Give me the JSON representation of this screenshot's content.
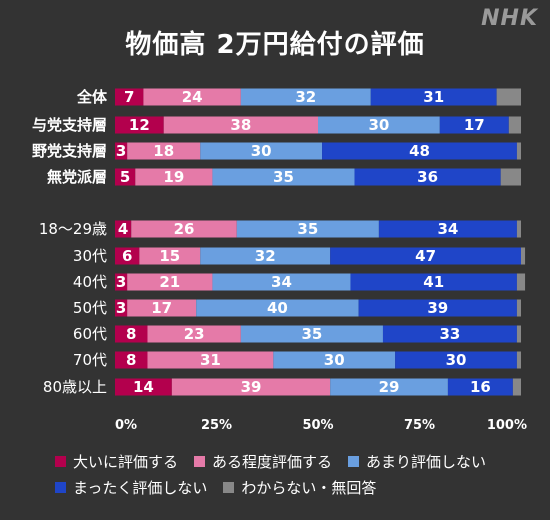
{
  "logo": "NHK",
  "chart_data": {
    "type": "bar",
    "orientation": "horizontal",
    "stacked": true,
    "title": "物価高 2万円給付の評価",
    "categories": [
      "全体",
      "与党支持層",
      "野党支持層",
      "無党派層",
      "18〜29歳",
      "30代",
      "40代",
      "50代",
      "60代",
      "70代",
      "80歳以上"
    ],
    "bold_categories": [
      "全体",
      "与党支持層",
      "野党支持層",
      "無党派層"
    ],
    "series": [
      {
        "name": "大いに評価する",
        "color": "#b3004d",
        "values": [
          7,
          12,
          3,
          5,
          4,
          6,
          3,
          3,
          8,
          8,
          14
        ]
      },
      {
        "name": "ある程度評価する",
        "color": "#e57aa8",
        "values": [
          24,
          38,
          18,
          19,
          26,
          15,
          21,
          17,
          23,
          31,
          39
        ]
      },
      {
        "name": "あまり評価しない",
        "color": "#6a9fe0",
        "values": [
          32,
          30,
          30,
          35,
          35,
          32,
          34,
          40,
          35,
          30,
          29
        ]
      },
      {
        "name": "まったく評価しない",
        "color": "#1f45c8",
        "values": [
          31,
          17,
          48,
          36,
          34,
          47,
          41,
          39,
          33,
          30,
          16
        ]
      },
      {
        "name": "わからない・無回答",
        "color": "#888888",
        "values": [
          6,
          3,
          1,
          5,
          1,
          1,
          2,
          1,
          1,
          1,
          2
        ]
      }
    ],
    "label_series": [
      0,
      1,
      2,
      3
    ],
    "x_ticks": [
      "0%",
      "25%",
      "50%",
      "75%",
      "100%"
    ],
    "xlim": [
      0,
      100
    ]
  }
}
